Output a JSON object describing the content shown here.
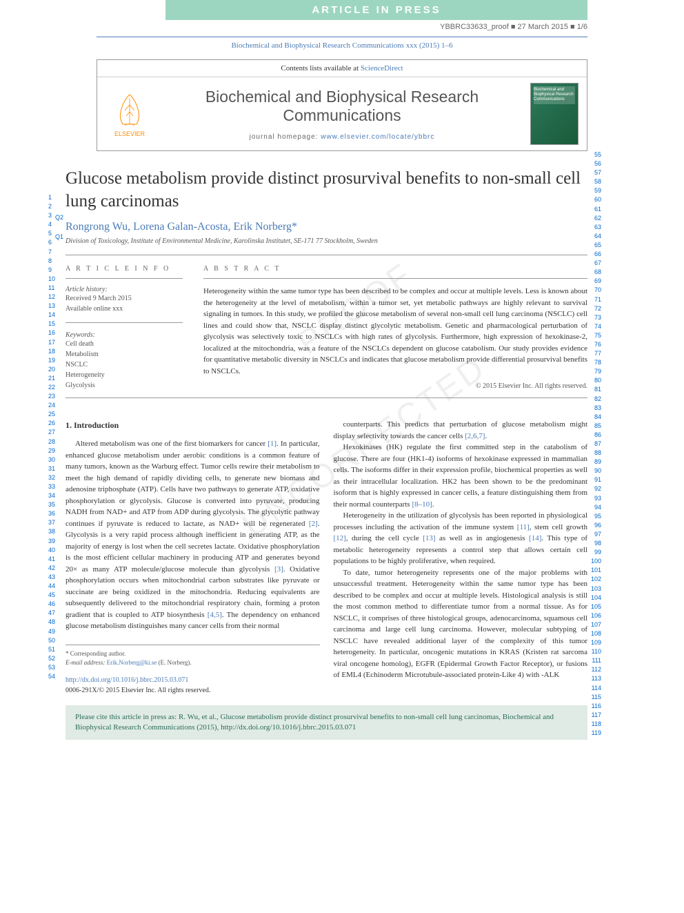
{
  "header": {
    "article_in_press": "ARTICLE IN PRESS",
    "proof_info": "YBBRC33633_proof ■ 27 March 2015 ■ 1/6",
    "journal_ref": "Biochemical and Biophysical Research Communications xxx (2015) 1–6",
    "contents_text": "Contents lists available at ",
    "sciencedirect": "ScienceDirect",
    "journal_name": "Biochemical and Biophysical Research Communications",
    "homepage_label": "journal homepage: ",
    "homepage_url": "www.elsevier.com/locate/ybbrc",
    "elsevier_label": "ELSEVIER",
    "cover_text": "Biochemical and Biophysical Research Communications"
  },
  "colors": {
    "press_banner": "#9dd6c0",
    "link_blue": "#4a7ab5",
    "elsevier_orange": "#ff8c00",
    "cite_bg": "#e0ebe5",
    "cite_text": "#2a6a5a",
    "line_number": "#0066cc"
  },
  "line_numbers": {
    "left_start": 1,
    "left_end": 54,
    "right_start": 55,
    "right_end": 119
  },
  "q_markers": {
    "q1": "Q1",
    "q2": "Q2"
  },
  "article": {
    "title": "Glucose metabolism provide distinct prosurvival benefits to non-small cell lung carcinomas",
    "authors": "Rongrong Wu, Lorena Galan-Acosta, Erik Norberg",
    "corresp_marker": "*",
    "affiliation": "Division of Toxicology, Institute of Environmental Medicine, Karolinska Institutet, SE-171 77 Stockholm, Sweden"
  },
  "info": {
    "heading": "A R T I C L E  I N F O",
    "history_label": "Article history:",
    "received": "Received 9 March 2015",
    "online": "Available online xxx",
    "keywords_label": "Keywords:",
    "keywords": [
      "Cell death",
      "Metabolism",
      "NSCLC",
      "Heterogeneity",
      "Glycolysis"
    ]
  },
  "abstract": {
    "heading": "A B S T R A C T",
    "text": "Heterogeneity within the same tumor type has been described to be complex and occur at multiple levels. Less is known about the heterogeneity at the level of metabolism, within a tumor set, yet metabolic pathways are highly relevant to survival signaling in tumors. In this study, we profiled the glucose metabolism of several non-small cell lung carcinoma (NSCLC) cell lines and could show that, NSCLC display distinct glycolytic metabolism. Genetic and pharmacological perturbation of glycolysis was selectively toxic to NSCLCs with high rates of glycolysis. Furthermore, high expression of hexokinase-2, localized at the mitochondria, was a feature of the NSCLCs dependent on glucose catabolism. Our study provides evidence for quantitative metabolic diversity in NSCLCs and indicates that glucose metabolism provide differential prosurvival benefits to NSCLCs.",
    "copyright": "© 2015 Elsevier Inc. All rights reserved."
  },
  "body": {
    "section_title": "1. Introduction",
    "col1_p1": "Altered metabolism was one of the first biomarkers for cancer [1]. In particular, enhanced glucose metabolism under aerobic conditions is a common feature of many tumors, known as the Warburg effect. Tumor cells rewire their metabolism to meet the high demand of rapidly dividing cells, to generate new biomass and adenosine triphosphate (ATP). Cells have two pathways to generate ATP, oxidative phosphorylation or glycolysis. Glucose is converted into pyruvate, producing NADH from NAD+ and ATP from ADP during glycolysis. The glycolytic pathway continues if pyruvate is reduced to lactate, as NAD+ will be regenerated [2]. Glycolysis is a very rapid process although inefficient in generating ATP, as the majority of energy is lost when the cell secretes lactate. Oxidative phosphorylation is the most efficient cellular machinery in producing ATP and generates beyond 20× as many ATP molecule/glucose molecule than glycolysis [3]. Oxidative phosphorylation occurs when mitochondrial carbon substrates like pyruvate or succinate are being oxidized in the mitochondria. Reducing equivalents are subsequently delivered to the mitochondrial respiratory chain, forming a proton gradient that is coupled to ATP biosynthesis [4,5]. The dependency on enhanced glucose metabolism distinguishes many cancer cells from their normal",
    "col2_p1": "counterparts. This predicts that perturbation of glucose metabolism might display selectivity towards the cancer cells [2,6,7].",
    "col2_p2": "Hexokinases (HK) regulate the first committed step in the catabolism of glucose. There are four (HK1-4) isoforms of hexokinase expressed in mammalian cells. The isoforms differ in their expression profile, biochemical properties as well as their intracellular localization. HK2 has been shown to be the predominant isoform that is highly expressed in cancer cells, a feature distinguishing them from their normal counterparts [8–10].",
    "col2_p3": "Heterogeneity in the utilization of glycolysis has been reported in physiological processes including the activation of the immune system [11], stem cell growth [12], during the cell cycle [13] as well as in angiogenesis [14]. This type of metabolic heterogeneity represents a control step that allows certain cell populations to be highly proliferative, when required.",
    "col2_p4": "To date, tumor heterogeneity represents one of the major problems with unsuccessful treatment. Heterogeneity within the same tumor type has been described to be complex and occur at multiple levels. Histological analysis is still the most common method to differentiate tumor from a normal tissue. As for NSCLC, it comprises of three histological groups, adenocarcinoma, squamous cell carcinoma and large cell lung carcinoma. However, molecular subtyping of NSCLC have revealed additional layer of the complexity of this tumor heterogeneity. In particular, oncogenic mutations in KRAS (Kristen rat sarcoma viral oncogene homolog), EGFR (Epidermal Growth Factor Receptor), or fusions of EML4 (Echinoderm Microtubule-associated protein-Like 4) with -ALK"
  },
  "footer": {
    "corresp_label": "* Corresponding author.",
    "email_label": "E-mail address: ",
    "email": "Erik.Norberg@ki.se",
    "email_name": " (E. Norberg).",
    "doi": "http://dx.doi.org/10.1016/j.bbrc.2015.03.071",
    "issn": "0006-291X/© 2015 Elsevier Inc. All rights reserved."
  },
  "cite_box": "Please cite this article in press as: R. Wu, et al., Glucose metabolism provide distinct prosurvival benefits to non-small cell lung carcinomas, Biochemical and Biophysical Research Communications (2015), http://dx.doi.org/10.1016/j.bbrc.2015.03.071"
}
